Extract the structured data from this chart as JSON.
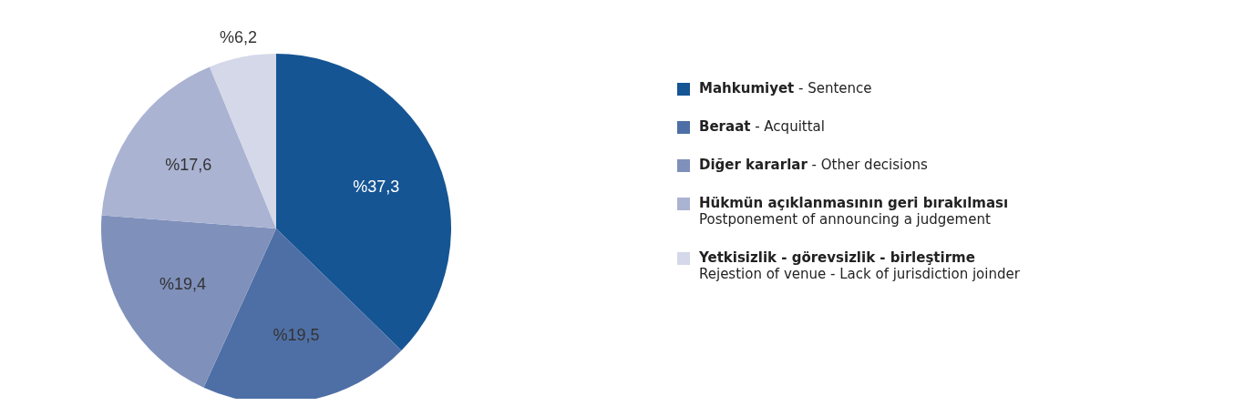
{
  "chart_data": {
    "type": "pie",
    "categories": [
      "Mahkumiyet - Sentence",
      "Beraat - Acquittal",
      "Diğer kararlar - Other decisions",
      "Hükmün açıklanmasının geri bırakılması\nPostponement of announcing a judgement",
      "Yetkisizlik - görevsizlik - birleştirme\nRejestion of venue - Lack of jurisdiction joinder"
    ],
    "values": [
      37.3,
      19.5,
      19.4,
      17.6,
      6.2
    ],
    "value_labels": [
      "%37,3",
      "%19,5",
      "%19,4",
      "%17,6",
      "%6,2"
    ],
    "colors": [
      "#155594",
      "#4e6fa5",
      "#7f90bb",
      "#aab3d2",
      "#d4d8e8"
    ],
    "legend": "right"
  }
}
